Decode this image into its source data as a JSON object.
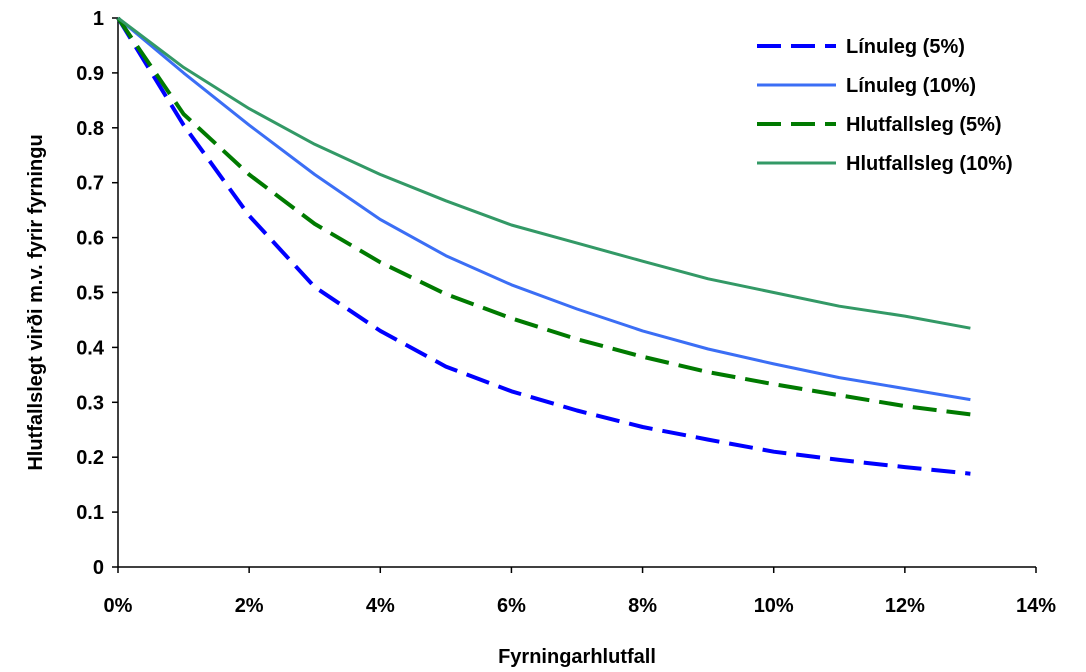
{
  "chart_data": {
    "type": "line",
    "title": "",
    "xlabel": "Fyrningarhlutfall",
    "ylabel": "Hlutfallslegt virði m.v. fyrir fyrningu",
    "xlim": [
      0,
      0.14
    ],
    "ylim": [
      0,
      1
    ],
    "x_ticks": [
      0,
      0.02,
      0.04,
      0.06,
      0.08,
      0.1,
      0.12,
      0.14
    ],
    "x_tick_labels": [
      "0%",
      "2%",
      "4%",
      "6%",
      "8%",
      "10%",
      "12%",
      "14%"
    ],
    "y_ticks": [
      0,
      0.1,
      0.2,
      0.3,
      0.4,
      0.5,
      0.6,
      0.7,
      0.8,
      0.9,
      1
    ],
    "y_tick_labels": [
      "0",
      "0.1",
      "0.2",
      "0.3",
      "0.4",
      "0.5",
      "0.6",
      "0.7",
      "0.8",
      "0.9",
      "1"
    ],
    "grid": false,
    "legend_position": "top-right",
    "x": [
      0,
      0.01,
      0.02,
      0.03,
      0.04,
      0.05,
      0.06,
      0.07,
      0.08,
      0.09,
      0.1,
      0.11,
      0.12,
      0.13
    ],
    "series": [
      {
        "name": "Línuleg  (5%)",
        "color": "#0000ff",
        "dashed": true,
        "values": [
          1.0,
          0.805,
          0.64,
          0.51,
          0.43,
          0.365,
          0.32,
          0.285,
          0.255,
          0.232,
          0.21,
          0.195,
          0.182,
          0.17
        ]
      },
      {
        "name": "Línuleg (10%)",
        "color": "#3b6ef5",
        "dashed": false,
        "values": [
          1.0,
          0.9,
          0.805,
          0.715,
          0.633,
          0.567,
          0.514,
          0.47,
          0.43,
          0.397,
          0.37,
          0.345,
          0.325,
          0.305
        ]
      },
      {
        "name": "Hlutfallsleg  (5%)",
        "color": "#007a00",
        "dashed": true,
        "values": [
          1.0,
          0.825,
          0.715,
          0.625,
          0.555,
          0.497,
          0.453,
          0.415,
          0.383,
          0.355,
          0.333,
          0.313,
          0.293,
          0.278
        ]
      },
      {
        "name": "Hlutfallsleg  (10%)",
        "color": "#339966",
        "dashed": false,
        "values": [
          1.0,
          0.91,
          0.835,
          0.77,
          0.715,
          0.667,
          0.623,
          0.59,
          0.557,
          0.525,
          0.5,
          0.475,
          0.457,
          0.435
        ]
      }
    ]
  }
}
